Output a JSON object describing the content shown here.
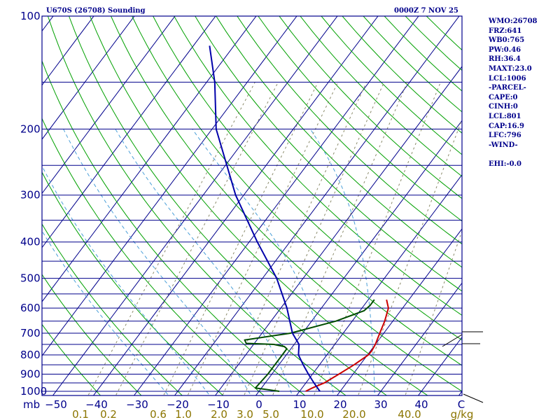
{
  "header": {
    "title": "U670S (26708) Sounding",
    "datetime": "0000Z  7 NOV 25"
  },
  "sidebar": {
    "lines": [
      "WMO:26708",
      "FRZ:641",
      "WB0:765",
      "PW:0.46",
      "RH:36.4",
      "MAXT:23.0",
      "LCL:1006",
      "-PARCEL-",
      "CAPE:0",
      "CINH:0",
      "LCL:801",
      "CAP:16.9",
      "LFC:796",
      "-WIND-",
      "",
      "EHI:-0.0"
    ]
  },
  "colors": {
    "isobar": "#00008b",
    "dry_adiabat": "#00a000",
    "moist_adiabat": "#4a9fd8",
    "mixing_ratio": "#8a8a6a",
    "temperature": "#cc0000",
    "dewpoint": "#004d00",
    "parcel": "#0000aa",
    "mixing_label": "#8b7500",
    "axis_text": "#00008b"
  },
  "chart_data": {
    "type": "line",
    "chart_kind": "skew-T log-P",
    "y_scale": "log",
    "y_unit": "mb",
    "x_unit": "C",
    "pressure_ticks": [
      100,
      200,
      300,
      400,
      500,
      600,
      700,
      800,
      900,
      1000
    ],
    "temperature_ticks": [
      -50,
      -40,
      -30,
      -20,
      -10,
      0,
      10,
      20,
      30,
      40
    ],
    "mixing_ratio_labels": [
      "0.1",
      "0.2",
      "0.6",
      "1.0",
      "2.0",
      "3.0",
      "5.0",
      "10.0",
      "20.0",
      "40.0"
    ],
    "mixing_ratio_unit": "g/kg",
    "series": [
      {
        "key": "temperature",
        "points": [
          [
            1000,
            11.5
          ],
          [
            980,
            12.5
          ],
          [
            950,
            14.5
          ],
          [
            900,
            16.5
          ],
          [
            850,
            18.5
          ],
          [
            800,
            20.2
          ],
          [
            780,
            20.3
          ],
          [
            750,
            20
          ],
          [
            700,
            19
          ],
          [
            650,
            18
          ],
          [
            600,
            16.5
          ],
          [
            570,
            14.5
          ]
        ]
      },
      {
        "key": "dewpoint",
        "points": [
          [
            1000,
            5
          ],
          [
            980,
            -1.5
          ],
          [
            900,
            -1
          ],
          [
            850,
            -1
          ],
          [
            800,
            -1
          ],
          [
            770,
            -1
          ],
          [
            760,
            -2
          ],
          [
            750,
            -5
          ],
          [
            745,
            -12
          ],
          [
            730,
            -13
          ],
          [
            700,
            -3
          ],
          [
            650,
            6
          ],
          [
            610,
            11
          ],
          [
            590,
            11.5
          ],
          [
            570,
            11.5
          ]
        ]
      },
      {
        "key": "parcel",
        "points": [
          [
            1000,
            15
          ],
          [
            950,
            12
          ],
          [
            900,
            9
          ],
          [
            850,
            6
          ],
          [
            800,
            3
          ],
          [
            750,
            1.2
          ],
          [
            700,
            -2.5
          ],
          [
            600,
            -8.5
          ],
          [
            500,
            -16.5
          ],
          [
            400,
            -28
          ],
          [
            300,
            -42
          ],
          [
            200,
            -59
          ],
          [
            150,
            -68
          ],
          [
            120,
            -76
          ]
        ]
      }
    ]
  }
}
